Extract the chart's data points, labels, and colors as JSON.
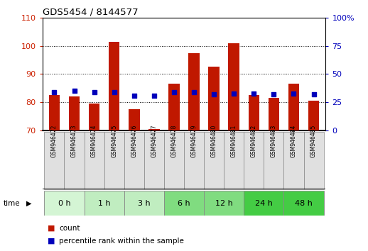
{
  "title": "GDS5454 / 8144577",
  "samples": [
    "GSM946472",
    "GSM946473",
    "GSM946474",
    "GSM946475",
    "GSM946476",
    "GSM946477",
    "GSM946478",
    "GSM946479",
    "GSM946480",
    "GSM946481",
    "GSM946482",
    "GSM946483",
    "GSM946484",
    "GSM946485"
  ],
  "count_values": [
    82.5,
    82.0,
    79.5,
    101.5,
    77.5,
    70.5,
    86.5,
    97.5,
    92.5,
    101.0,
    82.5,
    81.5,
    86.5,
    80.5
  ],
  "percentile_values": [
    34,
    35,
    34,
    34,
    31,
    31,
    34,
    34,
    32,
    33,
    33,
    32,
    33,
    32
  ],
  "time_groups": [
    {
      "label": "0 h",
      "start": 0,
      "end": 2,
      "color": "#d4f5d4"
    },
    {
      "label": "1 h",
      "start": 2,
      "end": 4,
      "color": "#c0edc0"
    },
    {
      "label": "3 h",
      "start": 4,
      "end": 6,
      "color": "#c0edc0"
    },
    {
      "label": "6 h",
      "start": 6,
      "end": 8,
      "color": "#80dc80"
    },
    {
      "label": "12 h",
      "start": 8,
      "end": 10,
      "color": "#80dc80"
    },
    {
      "label": "24 h",
      "start": 10,
      "end": 12,
      "color": "#44cc44"
    },
    {
      "label": "48 h",
      "start": 12,
      "end": 14,
      "color": "#44cc44"
    }
  ],
  "ylim_left": [
    70,
    110
  ],
  "ylim_right": [
    0,
    100
  ],
  "yticks_left": [
    70,
    80,
    90,
    100,
    110
  ],
  "yticks_right": [
    0,
    25,
    50,
    75,
    100
  ],
  "bar_color": "#c01800",
  "dot_color": "#0000bb",
  "bar_width": 0.55,
  "plot_bg": "#ffffff"
}
